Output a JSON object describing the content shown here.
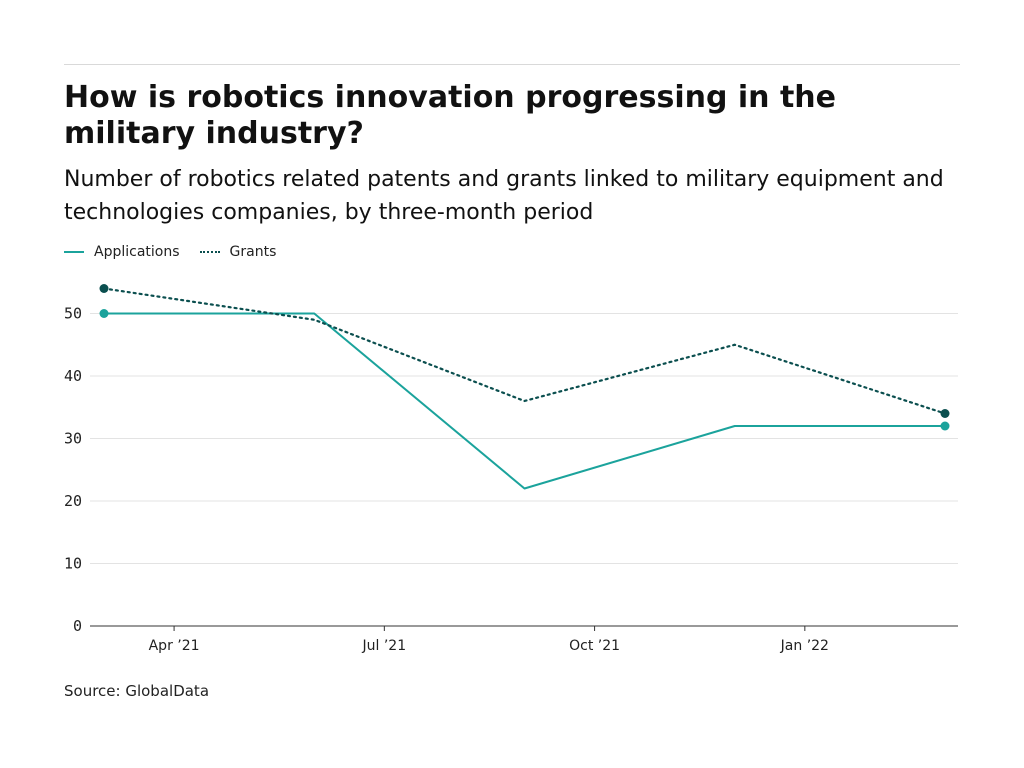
{
  "header": {
    "title": "How is robotics innovation progressing in the military industry?",
    "subtitle": "Number of robotics related patents and grants linked to military equipment and technologies companies, by three-month period"
  },
  "footer": {
    "source": "Source: GlobalData"
  },
  "colors": {
    "applications": "#1ba39c",
    "grants": "#0b4f4f",
    "grid": "#e3e3e3",
    "axis": "#333333"
  },
  "chart_data": {
    "type": "line",
    "title": "How is robotics innovation progressing in the military industry?",
    "subtitle": "Number of robotics related patents and grants linked to military equipment and technologies companies, by three-month period",
    "x": [
      "2021-03",
      "2021-06",
      "2021-09",
      "2021-12",
      "2022-03"
    ],
    "x_tick_labels": [
      {
        "label": "Apr ’21",
        "x": "2021-04"
      },
      {
        "label": "Jul ’21",
        "x": "2021-07"
      },
      {
        "label": "Oct ’21",
        "x": "2021-10"
      },
      {
        "label": "Jan ’22",
        "x": "2022-01"
      }
    ],
    "series": [
      {
        "name": "Applications",
        "values": [
          50,
          50,
          22,
          32,
          32
        ],
        "style": "solid",
        "color": "#1ba39c"
      },
      {
        "name": "Grants",
        "values": [
          54,
          49,
          36,
          45,
          34
        ],
        "style": "dotted",
        "color": "#0b4f4f"
      }
    ],
    "y_ticks": [
      0,
      10,
      20,
      30,
      40,
      50
    ],
    "ylim": [
      0,
      56
    ],
    "grid": true,
    "legend": "top-left",
    "xlabel": "",
    "ylabel": ""
  }
}
